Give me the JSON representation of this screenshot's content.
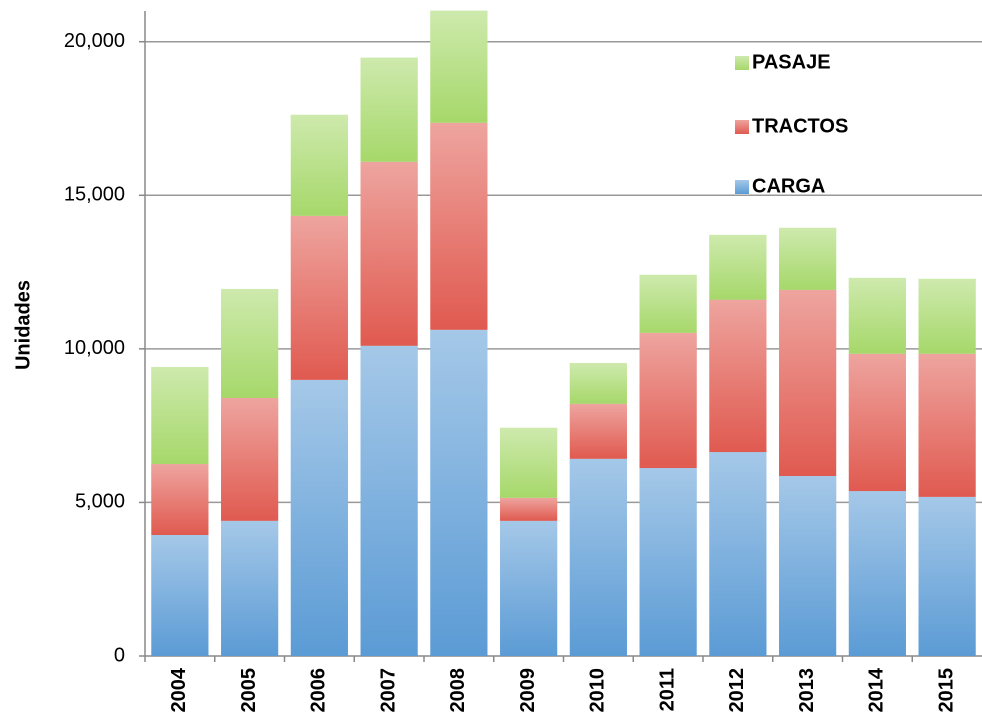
{
  "chart_data": {
    "type": "stacked-bar",
    "y_label": "Unidades",
    "categories": [
      "2004",
      "2005",
      "2006",
      "2007",
      "2008",
      "2009",
      "2010",
      "2011",
      "2012",
      "2013",
      "2014",
      "2015"
    ],
    "series": [
      {
        "name": "CARGA",
        "color": "#5b9bd5",
        "values": [
          3940,
          4400,
          8990,
          10100,
          10620,
          4400,
          6420,
          6120,
          6640,
          5860,
          5370,
          5180
        ]
      },
      {
        "name": "TRACTOS",
        "color": "#e05a50",
        "values": [
          2310,
          4000,
          5340,
          5990,
          6740,
          750,
          1790,
          4400,
          4960,
          6060,
          4470,
          4660
        ]
      },
      {
        "name": "PASAJE",
        "color": "#a6d86a",
        "values": [
          3160,
          3550,
          3290,
          3390,
          3650,
          2280,
          1330,
          1890,
          2110,
          2020,
          2470,
          2440
        ]
      }
    ],
    "ylim": [
      0,
      21000
    ],
    "yticks": [
      0,
      {
        "value": 5000,
        "label": "5,000"
      },
      {
        "value": 10000,
        "label": "10,000"
      },
      {
        "value": 15000,
        "label": "15,000"
      },
      {
        "value": 20000,
        "label": "20,000"
      }
    ],
    "grid": true
  }
}
